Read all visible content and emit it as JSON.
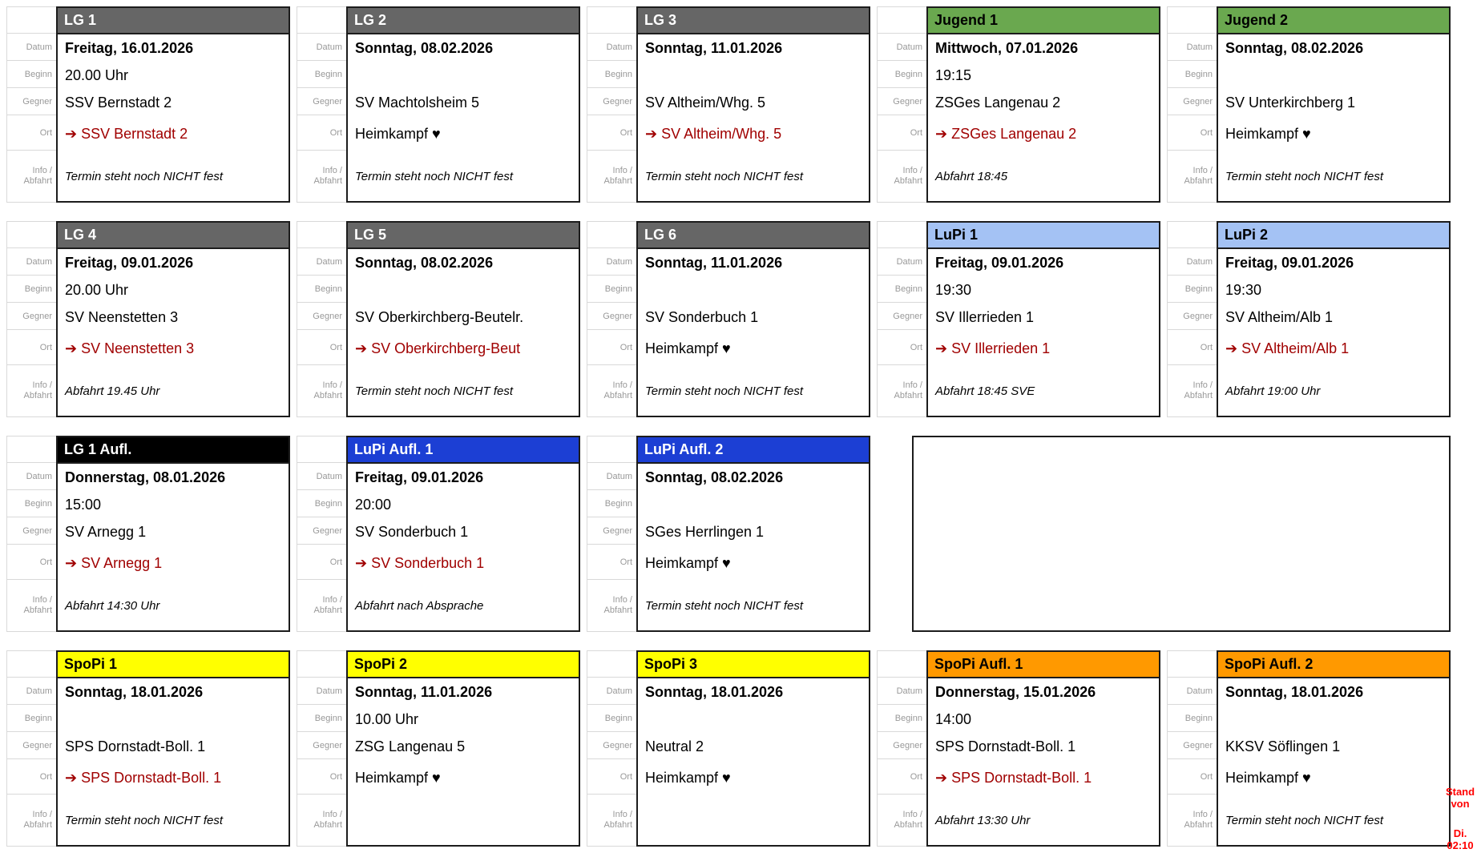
{
  "legend": {
    "datum": "Datum",
    "beginn": "Beginn",
    "gegner": "Gegner",
    "ort": "Ort",
    "info_line1": "Info /",
    "info_line2": "Abfahrt"
  },
  "colors": {
    "header_gray": "#666666",
    "header_green": "#6aa84f",
    "header_lightblue": "#a4c2f4",
    "header_black": "#000000",
    "header_blue": "#1c3fd4",
    "header_yellow": "#ffff00",
    "header_orange": "#ff9900",
    "away_red": "#a00000",
    "stand_red": "#ff0000",
    "card_border": "#1c1c1c"
  },
  "card_order": [
    "lg1",
    "lg2",
    "lg3",
    "jugend1",
    "jugend2",
    "lg4",
    "lg5",
    "lg6",
    "lupi1",
    "lupi2",
    "lg1aufl",
    "lupiaufl1",
    "lupiaufl2",
    null,
    "spopi1",
    "spopi2",
    "spopi3",
    "spopiaufl1",
    "spopiaufl2"
  ],
  "cards": {
    "lg1": {
      "title": "LG 1",
      "header_bg": "#666666",
      "header_fg": "#ffffff",
      "datum": "Freitag, 16.01.2026",
      "beginn": "20.00 Uhr",
      "gegner": "SSV Bernstadt 2",
      "ort": "➔ SSV Bernstadt 2",
      "ort_color": "#a00000",
      "info": "Termin steht noch NICHT fest"
    },
    "lg2": {
      "title": "LG 2",
      "header_bg": "#666666",
      "header_fg": "#ffffff",
      "datum": "Sonntag, 08.02.2026",
      "beginn": "",
      "gegner": "SV Machtolsheim 5",
      "ort": "Heimkampf ♥",
      "ort_color": "#000000",
      "info": "Termin steht noch NICHT fest"
    },
    "lg3": {
      "title": "LG 3",
      "header_bg": "#666666",
      "header_fg": "#ffffff",
      "datum": "Sonntag, 11.01.2026",
      "beginn": "",
      "gegner": "SV Altheim/Whg. 5",
      "ort": "➔ SV Altheim/Whg. 5",
      "ort_color": "#a00000",
      "info": "Termin steht noch NICHT fest"
    },
    "jugend1": {
      "title": "Jugend 1",
      "header_bg": "#6aa84f",
      "header_fg": "#000000",
      "datum": "Mittwoch, 07.01.2026",
      "beginn": "19:15",
      "gegner": "ZSGes Langenau 2",
      "ort": "➔ ZSGes Langenau 2",
      "ort_color": "#a00000",
      "info": "Abfahrt 18:45"
    },
    "jugend2": {
      "title": "Jugend 2",
      "header_bg": "#6aa84f",
      "header_fg": "#000000",
      "datum": "Sonntag, 08.02.2026",
      "beginn": "",
      "gegner": "SV Unterkirchberg 1",
      "ort": "Heimkampf ♥",
      "ort_color": "#000000",
      "info": "Termin steht noch NICHT fest"
    },
    "lg4": {
      "title": "LG 4",
      "header_bg": "#666666",
      "header_fg": "#ffffff",
      "datum": "Freitag, 09.01.2026",
      "beginn": "20.00 Uhr",
      "gegner": "SV Neenstetten 3",
      "ort": "➔ SV Neenstetten 3",
      "ort_color": "#a00000",
      "info": "Abfahrt 19.45 Uhr"
    },
    "lg5": {
      "title": "LG 5",
      "header_bg": "#666666",
      "header_fg": "#ffffff",
      "datum": "Sonntag, 08.02.2026",
      "beginn": "",
      "gegner": "SV Oberkirchberg-Beutelr.",
      "ort": "➔ SV Oberkirchberg-Beut",
      "ort_color": "#a00000",
      "info": "Termin steht noch NICHT fest"
    },
    "lg6": {
      "title": "LG 6",
      "header_bg": "#666666",
      "header_fg": "#ffffff",
      "datum": "Sonntag, 11.01.2026",
      "beginn": "",
      "gegner": "SV Sonderbuch 1",
      "ort": "Heimkampf ♥",
      "ort_color": "#000000",
      "info": "Termin steht noch NICHT fest"
    },
    "lupi1": {
      "title": "LuPi 1",
      "header_bg": "#a4c2f4",
      "header_fg": "#000000",
      "datum": "Freitag, 09.01.2026",
      "beginn": "19:30",
      "gegner": "SV Illerrieden 1",
      "ort": "➔ SV Illerrieden 1",
      "ort_color": "#a00000",
      "info": "Abfahrt 18:45 SVE"
    },
    "lupi2": {
      "title": "LuPi 2",
      "header_bg": "#a4c2f4",
      "header_fg": "#000000",
      "datum": "Freitag, 09.01.2026",
      "beginn": "19:30",
      "gegner": "SV Altheim/Alb 1",
      "ort": "➔ SV Altheim/Alb 1",
      "ort_color": "#a00000",
      "info": "Abfahrt 19:00 Uhr"
    },
    "lg1aufl": {
      "title": "LG 1 Aufl.",
      "header_bg": "#000000",
      "header_fg": "#ffffff",
      "datum": "Donnerstag, 08.01.2026",
      "beginn": "15:00",
      "gegner": "SV Arnegg 1",
      "ort": "➔ SV Arnegg 1",
      "ort_color": "#a00000",
      "info": "Abfahrt 14:30 Uhr"
    },
    "lupiaufl1": {
      "title": "LuPi Aufl. 1",
      "header_bg": "#1c3fd4",
      "header_fg": "#ffffff",
      "datum": "Freitag, 09.01.2026",
      "beginn": "20:00",
      "gegner": "SV Sonderbuch 1",
      "ort": "➔ SV Sonderbuch 1",
      "ort_color": "#a00000",
      "info": "Abfahrt nach Absprache"
    },
    "lupiaufl2": {
      "title": "LuPi Aufl. 2",
      "header_bg": "#1c3fd4",
      "header_fg": "#ffffff",
      "datum": "Sonntag, 08.02.2026",
      "beginn": "",
      "gegner": "SGes Herrlingen 1",
      "ort": "Heimkampf ♥",
      "ort_color": "#000000",
      "info": "Termin steht noch NICHT fest"
    },
    "spopi1": {
      "title": "SpoPi 1",
      "header_bg": "#ffff00",
      "header_fg": "#000000",
      "datum": "Sonntag, 18.01.2026",
      "beginn": "",
      "gegner": "SPS Dornstadt-Boll. 1",
      "ort": "➔ SPS Dornstadt-Boll. 1",
      "ort_color": "#a00000",
      "info": "Termin steht noch NICHT fest"
    },
    "spopi2": {
      "title": "SpoPi 2",
      "header_bg": "#ffff00",
      "header_fg": "#000000",
      "datum": "Sonntag, 11.01.2026",
      "beginn": "10.00 Uhr",
      "gegner": "ZSG Langenau 5",
      "ort": "Heimkampf ♥",
      "ort_color": "#000000",
      "info": ""
    },
    "spopi3": {
      "title": "SpoPi 3",
      "header_bg": "#ffff00",
      "header_fg": "#000000",
      "datum": "Sonntag, 18.01.2026",
      "beginn": "",
      "gegner": "Neutral 2",
      "ort": "Heimkampf ♥",
      "ort_color": "#000000",
      "info": ""
    },
    "spopiaufl1": {
      "title": "SpoPi Aufl. 1",
      "header_bg": "#ff9900",
      "header_fg": "#000000",
      "datum": "Donnerstag, 15.01.2026",
      "beginn": "14:00",
      "gegner": "SPS Dornstadt-Boll. 1",
      "ort": "➔ SPS Dornstadt-Boll. 1",
      "ort_color": "#a00000",
      "info": "Abfahrt 13:30 Uhr"
    },
    "spopiaufl2": {
      "title": "SpoPi Aufl. 2",
      "header_bg": "#ff9900",
      "header_fg": "#000000",
      "datum": "Sonntag, 18.01.2026",
      "beginn": "",
      "gegner": "KKSV Söflingen 1",
      "ort": "Heimkampf ♥",
      "ort_color": "#000000",
      "info": "Termin steht noch NICHT fest"
    }
  },
  "stand_note": {
    "line1": "Stand",
    "line2": "von",
    "line3": "Di.",
    "line4": "02:10"
  }
}
